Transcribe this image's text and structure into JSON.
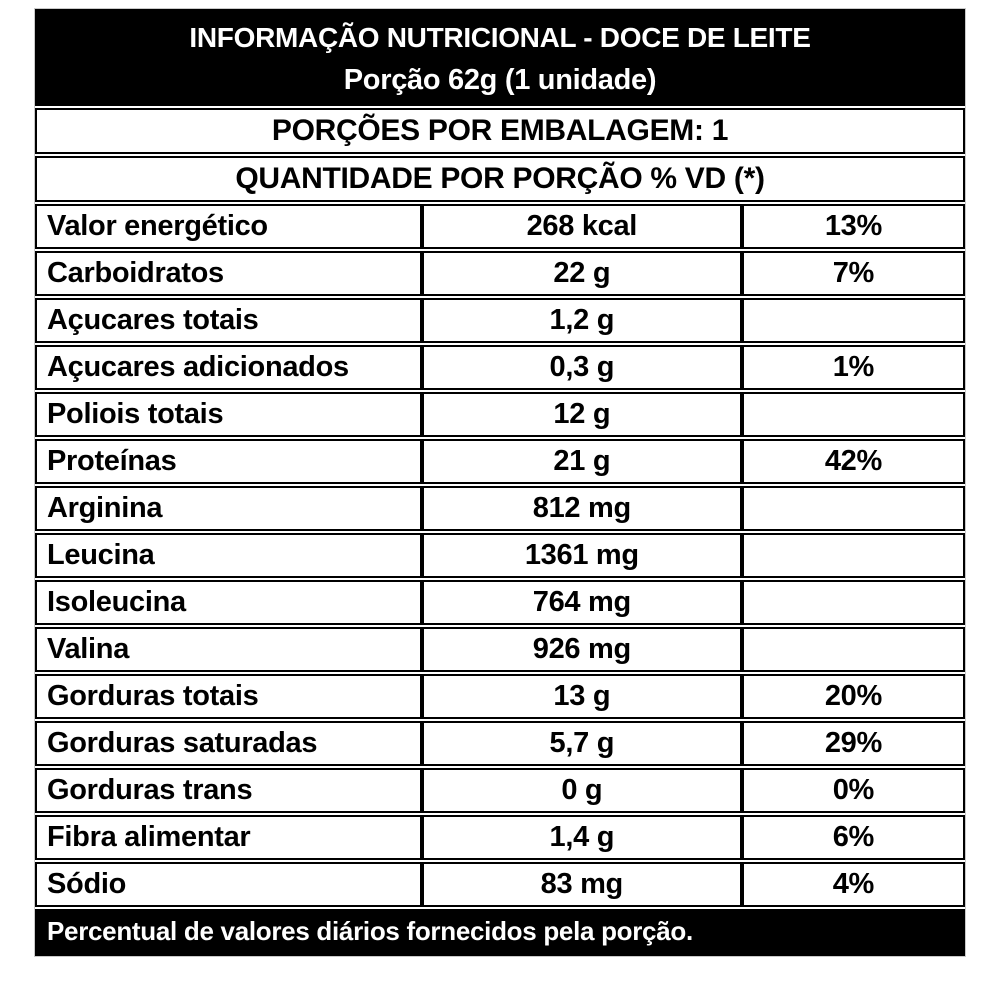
{
  "header": {
    "title": "INFORMAÇÃO NUTRICIONAL - DOCE DE LEITE",
    "serving": "Porção 62g (1 unidade)",
    "servings_per_package": "PORÇÕES POR EMBALAGEM: 1",
    "quantity_header": "QUANTIDADE POR PORÇÃO % VD (*)"
  },
  "rows": [
    {
      "name": "Valor energético",
      "amount": "268 kcal",
      "dv": "13%"
    },
    {
      "name": "Carboidratos",
      "amount": "22 g",
      "dv": "7%"
    },
    {
      "name": "Açucares totais",
      "amount": "1,2 g",
      "dv": ""
    },
    {
      "name": "Açucares adicionados",
      "amount": "0,3 g",
      "dv": "1%"
    },
    {
      "name": "Poliois totais",
      "amount": "12 g",
      "dv": ""
    },
    {
      "name": "Proteínas",
      "amount": "21 g",
      "dv": "42%"
    },
    {
      "name": "Arginina",
      "amount": "812 mg",
      "dv": ""
    },
    {
      "name": "Leucina",
      "amount": "1361 mg",
      "dv": ""
    },
    {
      "name": "Isoleucina",
      "amount": "764 mg",
      "dv": ""
    },
    {
      "name": "Valina",
      "amount": "926 mg",
      "dv": ""
    },
    {
      "name": "Gorduras totais",
      "amount": "13 g",
      "dv": "20%"
    },
    {
      "name": "Gorduras saturadas",
      "amount": "5,7 g",
      "dv": "29%"
    },
    {
      "name": "Gorduras trans",
      "amount": "0 g",
      "dv": "0%"
    },
    {
      "name": "Fibra alimentar",
      "amount": "1,4 g",
      "dv": "6%"
    },
    {
      "name": "Sódio",
      "amount": "83 mg",
      "dv": "4%"
    }
  ],
  "footer": {
    "note": "Percentual de valores diários fornecidos pela porção."
  },
  "colors": {
    "bar_background": "#000000",
    "bar_text": "#ffffff",
    "body_background": "#ffffff",
    "body_text": "#000000",
    "border": "#000000"
  }
}
